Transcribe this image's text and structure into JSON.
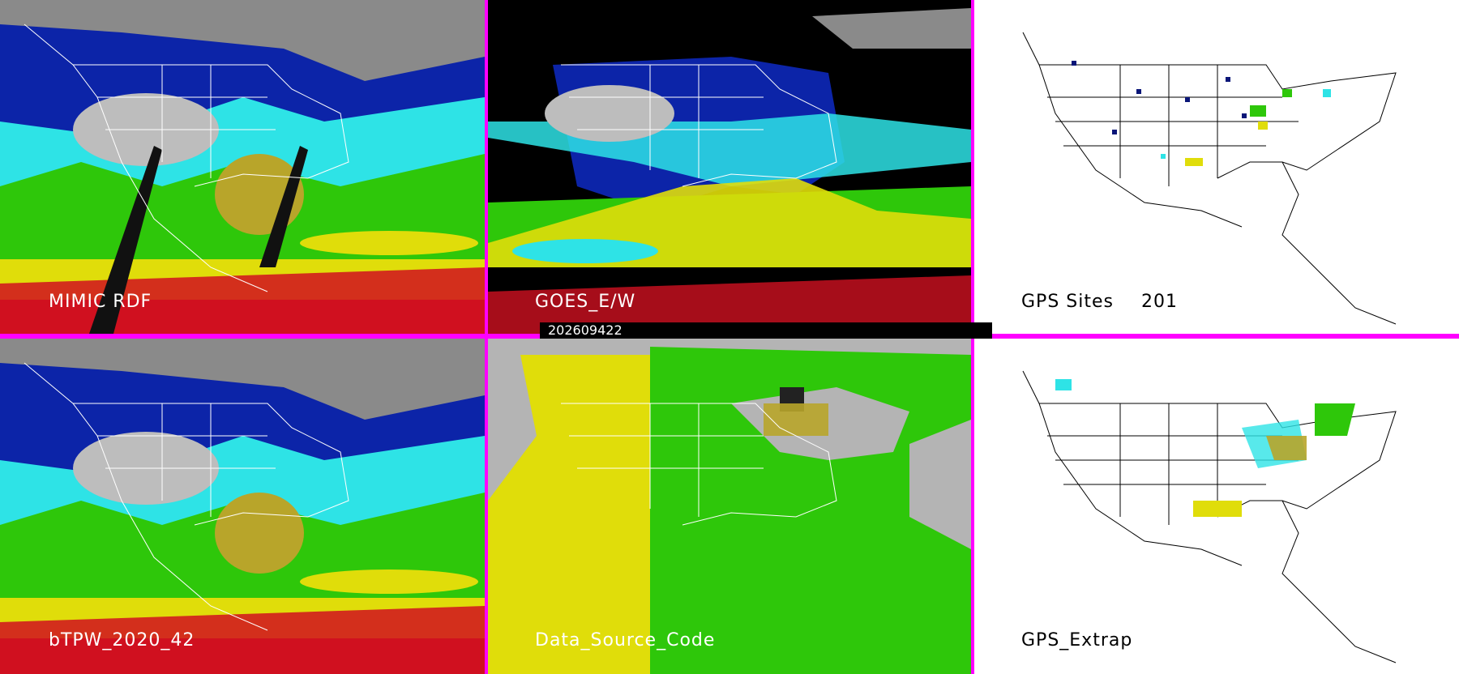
{
  "panels": [
    {
      "id": "p1",
      "label": "MIMIC RDF",
      "theme": "mimic"
    },
    {
      "id": "p2",
      "label": "GOES_E/W",
      "theme": "goes"
    },
    {
      "id": "p3",
      "label": "GPS Sites",
      "count": "201",
      "theme": "gps"
    },
    {
      "id": "p4",
      "label": "bTPW_2020_42",
      "theme": "mimic"
    },
    {
      "id": "p5",
      "label": "Data_Source_Code",
      "theme": "source"
    },
    {
      "id": "p6",
      "label": "GPS_Extrap",
      "theme": "extrap"
    }
  ],
  "timestamp": "202609422",
  "colors": {
    "separator": "#ff00ff",
    "dry_gray": "#b4b4b4",
    "blue": "#0c24a8",
    "cyan": "#2ee3e6",
    "green": "#2ec70a",
    "olive": "#b8a52a",
    "yellow": "#e0dd0a",
    "red": "#d0101c",
    "gps_dot": "#0a1678"
  }
}
